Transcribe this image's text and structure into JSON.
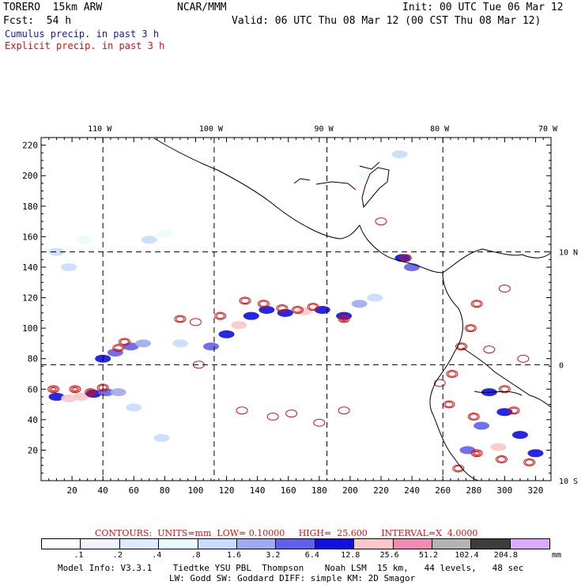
{
  "header": {
    "model": "TORERO  15km ARW",
    "org": "NCAR/MMM",
    "init": "Init: 00 UTC Tue 06 Mar 12",
    "fcst": "Fcst:  54 h",
    "valid": "Valid: 06 UTC Thu 08 Mar 12 (00 CST Thu 08 Mar 12)",
    "legend_cumulus": "Cumulus precip. in past 3 h",
    "legend_explicit": "Explicit precip. in past 3 h"
  },
  "colors": {
    "cumulus": "#1a1aa0",
    "explicit": "#d01010",
    "grid": "#000000"
  },
  "chart_data": {
    "type": "heatmap",
    "title": "Cumulus precip. in past 3 h / Explicit precip. in past 3 h",
    "x_grid_range": [
      0,
      330
    ],
    "y_grid_range": [
      0,
      225
    ],
    "x_ticks": [
      20,
      40,
      60,
      80,
      100,
      120,
      140,
      160,
      180,
      200,
      220,
      240,
      260,
      280,
      300,
      320
    ],
    "y_ticks": [
      20,
      40,
      60,
      80,
      100,
      120,
      140,
      160,
      180,
      200,
      220
    ],
    "lon_labels": [
      {
        "label": "110 W",
        "x": 40
      },
      {
        "label": "100 W",
        "x": 112
      },
      {
        "label": "90 W",
        "x": 185
      },
      {
        "label": "80 W",
        "x": 260
      },
      {
        "label": "70 W",
        "x": 330
      }
    ],
    "lat_labels": [
      {
        "label": "10 N",
        "y": 150
      },
      {
        "label": "0",
        "y": 76
      },
      {
        "label": "10 S",
        "y": 0
      }
    ],
    "lon_lines": [
      40,
      112,
      185,
      260
    ],
    "lat_lines": [
      150,
      76
    ],
    "cumulus_cells": [
      {
        "x": 10,
        "y": 55,
        "v": 6.4
      },
      {
        "x": 18,
        "y": 54,
        "v": 12.8
      },
      {
        "x": 26,
        "y": 55,
        "v": 12.8
      },
      {
        "x": 34,
        "y": 57,
        "v": 6.4
      },
      {
        "x": 42,
        "y": 58,
        "v": 3.2
      },
      {
        "x": 50,
        "y": 58,
        "v": 1.6
      },
      {
        "x": 40,
        "y": 80,
        "v": 6.4
      },
      {
        "x": 48,
        "y": 84,
        "v": 3.2
      },
      {
        "x": 58,
        "y": 88,
        "v": 3.2
      },
      {
        "x": 66,
        "y": 90,
        "v": 1.6
      },
      {
        "x": 90,
        "y": 90,
        "v": 0.8
      },
      {
        "x": 110,
        "y": 88,
        "v": 3.2
      },
      {
        "x": 120,
        "y": 96,
        "v": 6.4
      },
      {
        "x": 128,
        "y": 102,
        "v": 12.8
      },
      {
        "x": 136,
        "y": 108,
        "v": 6.4
      },
      {
        "x": 146,
        "y": 112,
        "v": 6.4
      },
      {
        "x": 158,
        "y": 110,
        "v": 6.4
      },
      {
        "x": 170,
        "y": 111,
        "v": 12.8
      },
      {
        "x": 182,
        "y": 112,
        "v": 6.4
      },
      {
        "x": 196,
        "y": 108,
        "v": 6.4
      },
      {
        "x": 206,
        "y": 116,
        "v": 1.6
      },
      {
        "x": 216,
        "y": 120,
        "v": 0.8
      },
      {
        "x": 10,
        "y": 150,
        "v": 0.8
      },
      {
        "x": 18,
        "y": 140,
        "v": 0.8
      },
      {
        "x": 28,
        "y": 158,
        "v": 0.4
      },
      {
        "x": 70,
        "y": 158,
        "v": 0.8
      },
      {
        "x": 80,
        "y": 162,
        "v": 0.4
      },
      {
        "x": 234,
        "y": 146,
        "v": 6.4
      },
      {
        "x": 240,
        "y": 140,
        "v": 3.2
      },
      {
        "x": 232,
        "y": 214,
        "v": 0.8
      },
      {
        "x": 210,
        "y": 200,
        "v": 0.4
      },
      {
        "x": 290,
        "y": 58,
        "v": 6.4
      },
      {
        "x": 300,
        "y": 45,
        "v": 6.4
      },
      {
        "x": 285,
        "y": 36,
        "v": 3.2
      },
      {
        "x": 310,
        "y": 30,
        "v": 6.4
      },
      {
        "x": 296,
        "y": 22,
        "v": 12.8
      },
      {
        "x": 320,
        "y": 18,
        "v": 6.4
      },
      {
        "x": 276,
        "y": 20,
        "v": 3.2
      },
      {
        "x": 60,
        "y": 48,
        "v": 0.8
      },
      {
        "x": 78,
        "y": 28,
        "v": 0.8
      }
    ],
    "explicit_cells": [
      {
        "x": 8,
        "y": 60,
        "v": 25.6
      },
      {
        "x": 22,
        "y": 60,
        "v": 12.8
      },
      {
        "x": 32,
        "y": 58,
        "v": 12.8
      },
      {
        "x": 40,
        "y": 61,
        "v": 6.4
      },
      {
        "x": 50,
        "y": 87,
        "v": 6.4
      },
      {
        "x": 54,
        "y": 91,
        "v": 3.2
      },
      {
        "x": 90,
        "y": 106,
        "v": 3.2
      },
      {
        "x": 100,
        "y": 104,
        "v": 1.6
      },
      {
        "x": 116,
        "y": 108,
        "v": 6.4
      },
      {
        "x": 132,
        "y": 118,
        "v": 6.4
      },
      {
        "x": 144,
        "y": 116,
        "v": 6.4
      },
      {
        "x": 156,
        "y": 113,
        "v": 6.4
      },
      {
        "x": 166,
        "y": 112,
        "v": 6.4
      },
      {
        "x": 176,
        "y": 114,
        "v": 6.4
      },
      {
        "x": 196,
        "y": 106,
        "v": 12.8
      },
      {
        "x": 102,
        "y": 76,
        "v": 1.6
      },
      {
        "x": 236,
        "y": 146,
        "v": 6.4
      },
      {
        "x": 130,
        "y": 46,
        "v": 0.8
      },
      {
        "x": 150,
        "y": 42,
        "v": 1.6
      },
      {
        "x": 162,
        "y": 44,
        "v": 0.8
      },
      {
        "x": 196,
        "y": 46,
        "v": 1.6
      },
      {
        "x": 180,
        "y": 38,
        "v": 0.8
      },
      {
        "x": 278,
        "y": 100,
        "v": 3.2
      },
      {
        "x": 282,
        "y": 116,
        "v": 3.2
      },
      {
        "x": 300,
        "y": 126,
        "v": 1.6
      },
      {
        "x": 272,
        "y": 88,
        "v": 3.2
      },
      {
        "x": 266,
        "y": 70,
        "v": 3.2
      },
      {
        "x": 258,
        "y": 64,
        "v": 1.6
      },
      {
        "x": 264,
        "y": 50,
        "v": 3.2
      },
      {
        "x": 280,
        "y": 42,
        "v": 3.2
      },
      {
        "x": 300,
        "y": 60,
        "v": 3.2
      },
      {
        "x": 306,
        "y": 46,
        "v": 6.4
      },
      {
        "x": 282,
        "y": 18,
        "v": 12.8
      },
      {
        "x": 298,
        "y": 14,
        "v": 6.4
      },
      {
        "x": 316,
        "y": 12,
        "v": 6.4
      },
      {
        "x": 270,
        "y": 8,
        "v": 6.4
      },
      {
        "x": 290,
        "y": 86,
        "v": 1.6
      },
      {
        "x": 312,
        "y": 80,
        "v": 1.6
      },
      {
        "x": 220,
        "y": 170,
        "v": 0.8
      }
    ]
  },
  "contours_text": "CONTOURS:  UNITS=mm  LOW= 0.10000     HIGH=  25.600     INTERVAL=X  4.0000",
  "colorbar": {
    "labels": [
      ".1",
      ".2",
      ".4",
      ".8",
      "1.6",
      "3.2",
      "6.4",
      "12.8",
      "25.6",
      "51.2",
      "102.4",
      "204.8"
    ],
    "units": "mm",
    "colors": [
      "#ffffff",
      "#f0f4ff",
      "#dcebff",
      "#e8fcfc",
      "#c8dcff",
      "#a0aaf0",
      "#6060ec",
      "#1010e0",
      "#fac8c8",
      "#f08cb4",
      "#b4b4b4",
      "#3c3c3c",
      "#dcaaff"
    ]
  },
  "model_info": {
    "line1": "Model Info: V3.3.1    Tiedtke YSU PBL  Thompson    Noah LSM  15 km,   44 levels,   48 sec",
    "line2": "LW: Godd SW: Goddard DIFF: simple KM: 2D Smagor"
  }
}
